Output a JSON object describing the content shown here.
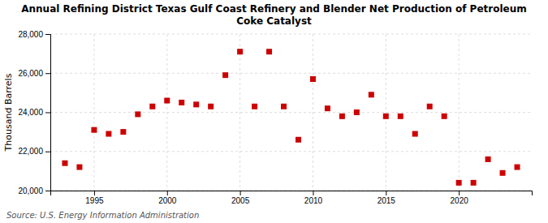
{
  "chart_data": {
    "type": "scatter",
    "title": "Annual Refining District Texas Gulf Coast Refinery and Blender Net Production of Petroleum\nCoke Catalyst",
    "ylabel": "Thousand Barrels",
    "annotations": [
      "Source: U.S. Energy Information Administration"
    ],
    "color": "#cc0000",
    "marker": "square",
    "grid": true,
    "xlim": [
      1992,
      2025
    ],
    "ylim": [
      20000,
      28000
    ],
    "xticks": [
      1995,
      2000,
      2005,
      2010,
      2015,
      2020
    ],
    "yticks": [
      {
        "value": 20000,
        "label": "20,000"
      },
      {
        "value": 22000,
        "label": "22,000"
      },
      {
        "value": 24000,
        "label": "24,000"
      },
      {
        "value": 26000,
        "label": "26,000"
      },
      {
        "value": 28000,
        "label": "28,000"
      }
    ],
    "x": [
      1993,
      1994,
      1995,
      1996,
      1997,
      1998,
      1999,
      2000,
      2001,
      2002,
      2003,
      2004,
      2005,
      2006,
      2007,
      2008,
      2009,
      2010,
      2011,
      2012,
      2013,
      2014,
      2015,
      2016,
      2017,
      2018,
      2019,
      2020,
      2021,
      2022,
      2023,
      2024
    ],
    "values": [
      21400,
      21200,
      23100,
      22900,
      23000,
      23900,
      24300,
      24600,
      24500,
      24400,
      24300,
      25900,
      27100,
      24300,
      27100,
      24300,
      22600,
      25700,
      24200,
      23800,
      24000,
      24900,
      23800,
      23800,
      22900,
      24300,
      23800,
      20400,
      20400,
      21600,
      20900,
      21200
    ]
  }
}
